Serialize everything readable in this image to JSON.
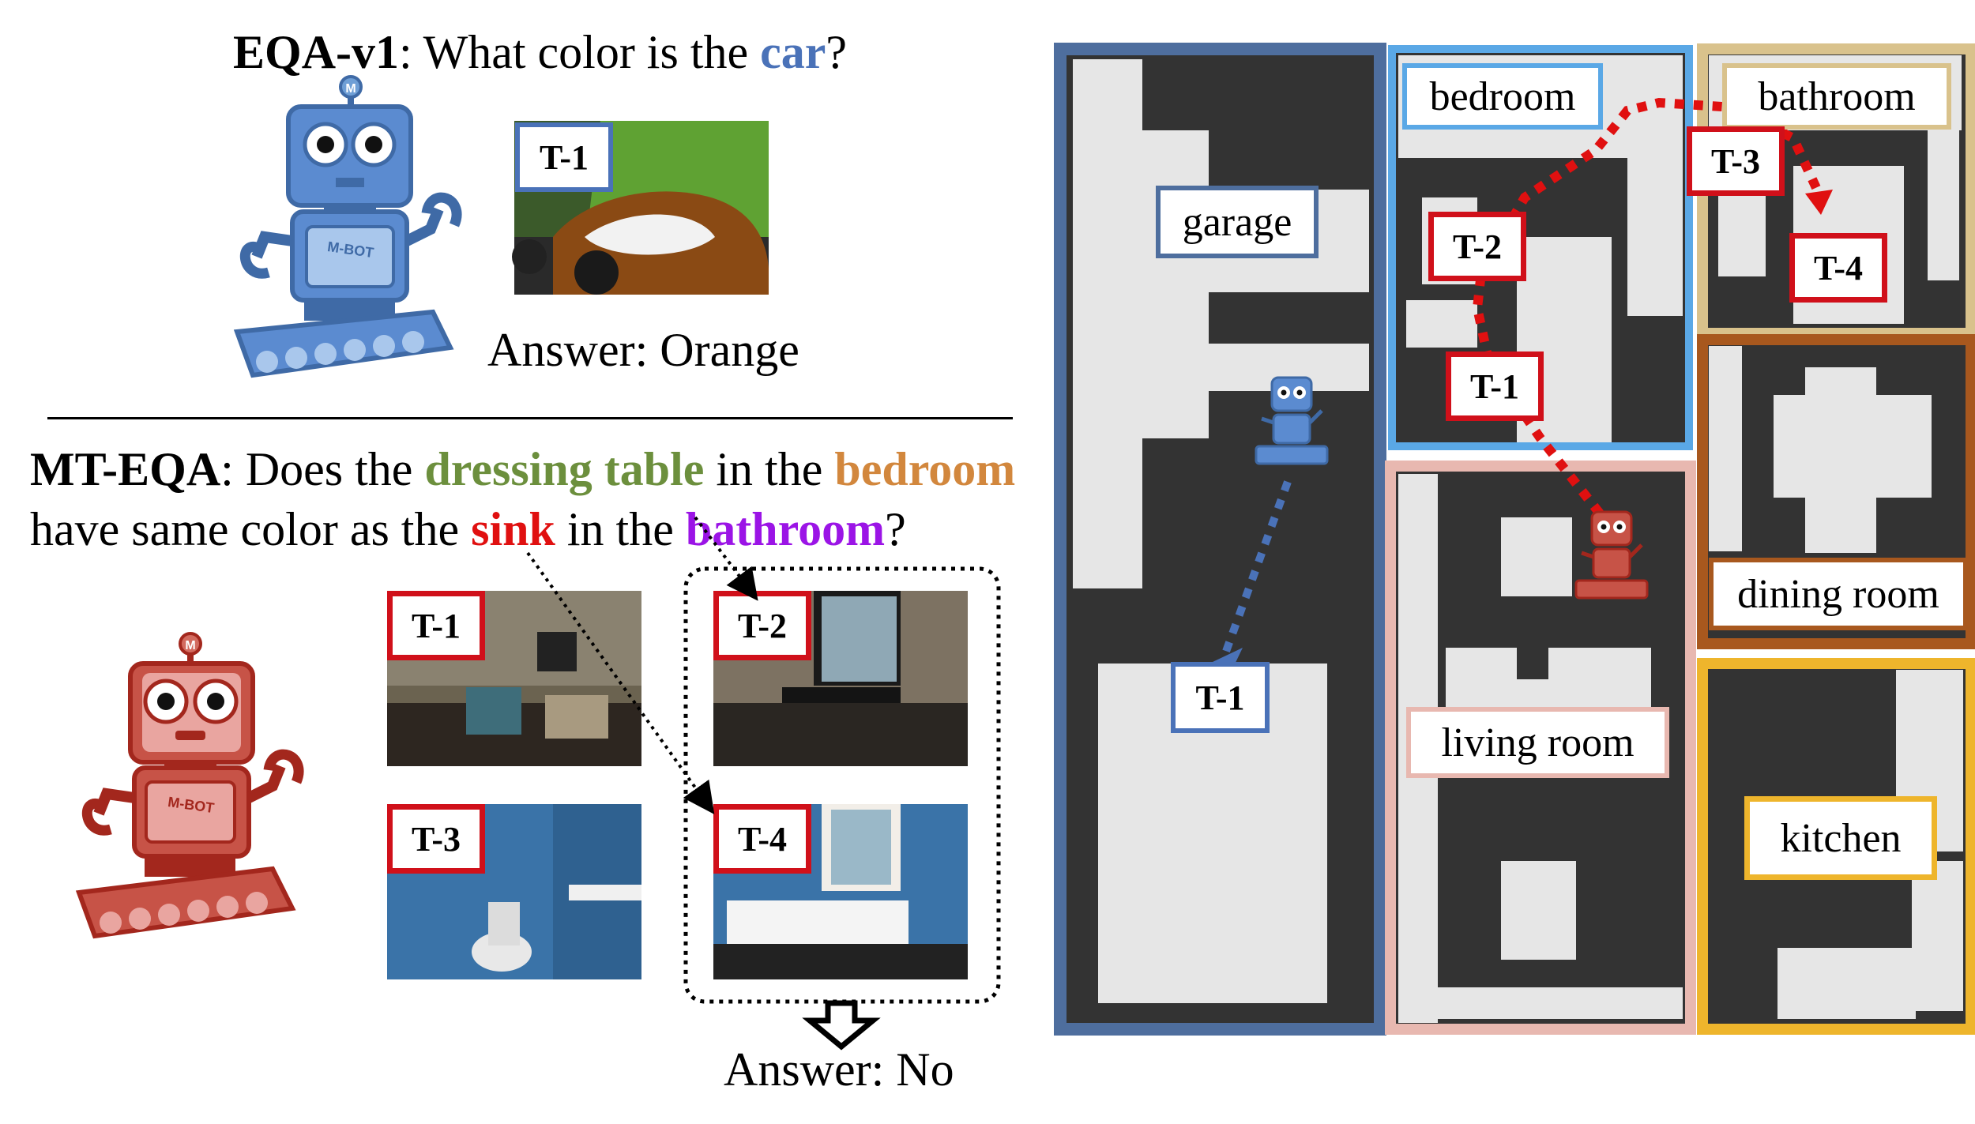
{
  "eqa_v1": {
    "name": "EQA-v1",
    "q_prefix": ": What color is the ",
    "q_object": "car",
    "q_suffix": "?",
    "tag": "T-1",
    "answer": "Answer: Orange"
  },
  "mt_eqa": {
    "name": "MT-EQA",
    "l1_a": ": Does the ",
    "l1_obj": "dressing table",
    "l1_b": " in the ",
    "l1_room": "bedroom",
    "l2_a": "have same color as the ",
    "l2_obj": "sink",
    "l2_b": " in the ",
    "l2_room": "bathroom",
    "l2_c": "?",
    "tags": [
      "T-1",
      "T-2",
      "T-3",
      "T-4"
    ],
    "answer": "Answer: No"
  },
  "robot_text": {
    "badge": "M-BOT",
    "antenna": "M"
  },
  "map": {
    "rooms": [
      "garage",
      "bedroom",
      "bathroom",
      "dining room",
      "living room",
      "kitchen"
    ],
    "tags": {
      "t1_blue": "T-1",
      "t1_red": "T-1",
      "t2": "T-2",
      "t3": "T-3",
      "t4": "T-4"
    }
  },
  "colors": {
    "car": "#4a72b8",
    "dressing_table": "#6c8f3d",
    "bedroom": "#d2873d",
    "sink": "#e01010",
    "bathroom": "#9b14e6",
    "garage_border": "#4e6e9e",
    "bedroom_border": "#5aa8e6",
    "bathroom_border": "#d9c28c",
    "dining_border": "#a8581e",
    "living_border": "#e8b8b0",
    "kitchen_border": "#eeb52c",
    "path_red": "#e01010",
    "path_blue": "#4a72b8"
  }
}
